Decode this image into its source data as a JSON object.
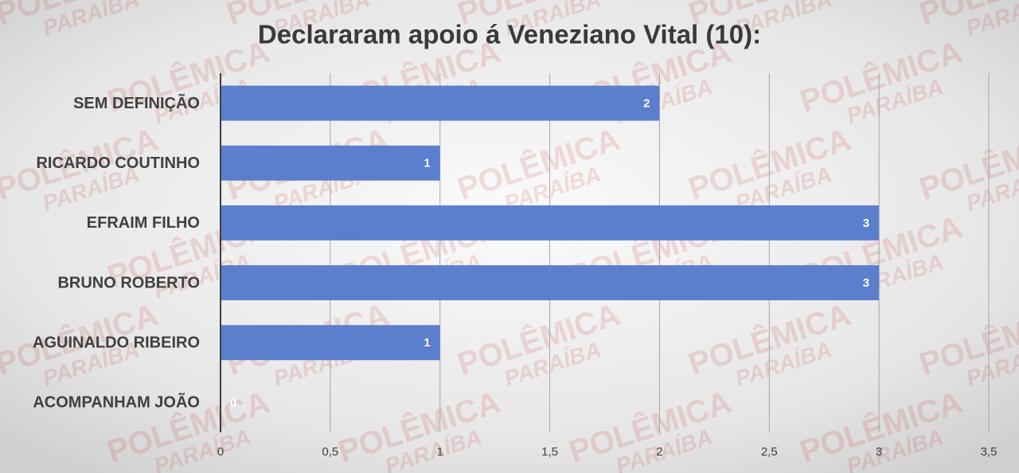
{
  "chart_data": {
    "type": "barh",
    "title": "Declararam apoio á Veneziano Vital (10):",
    "categories": [
      "SEM DEFINIÇÃO",
      "RICARDO COUTINHO",
      "EFRAIM FILHO",
      "BRUNO ROBERTO",
      "AGUINALDO RIBEIRO",
      "ACOMPANHAM JOÃO"
    ],
    "values": [
      2,
      1,
      3,
      3,
      1,
      0
    ],
    "color": "#5b7fcc",
    "xlim": [
      0,
      3.5
    ],
    "xticks": [
      0,
      {
        "value": 0.5,
        "label": "0,5"
      },
      1,
      {
        "value": 1.5,
        "label": "1,5"
      },
      2,
      {
        "value": 2.5,
        "label": "2,5"
      },
      3,
      {
        "value": 3.5,
        "label": "3,5"
      }
    ],
    "grid": true,
    "watermark": [
      "POLÊMICA",
      "PARAÍBA"
    ]
  }
}
